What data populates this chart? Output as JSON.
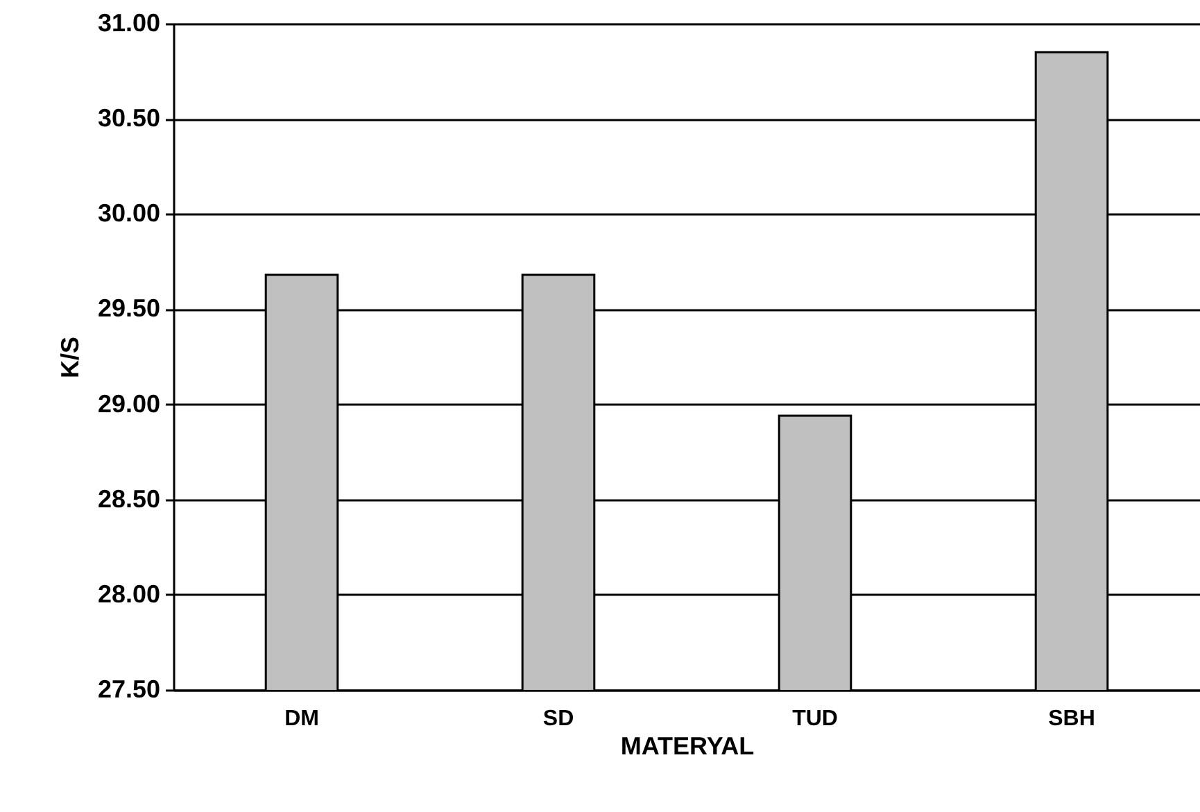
{
  "chart_data": {
    "type": "bar",
    "xlabel": "MATERYAL",
    "ylabel": "K/S",
    "categories": [
      "DM",
      "SD",
      "TUD",
      "SBH"
    ],
    "values": [
      29.68,
      29.68,
      28.94,
      30.85
    ],
    "color": "#c0c0c0",
    "ylim": [
      27.5,
      31
    ],
    "yticks": [
      {
        "value": 27.5,
        "label": "27.50"
      },
      {
        "value": 28,
        "label": "28.00"
      },
      {
        "value": 28.5,
        "label": "28.50"
      },
      {
        "value": 29,
        "label": "29.00"
      },
      {
        "value": 29.5,
        "label": "29.50"
      },
      {
        "value": 30,
        "label": "30.00"
      },
      {
        "value": 30.5,
        "label": "30.50"
      },
      {
        "value": 31,
        "label": "31.00"
      }
    ],
    "grid": "y"
  }
}
